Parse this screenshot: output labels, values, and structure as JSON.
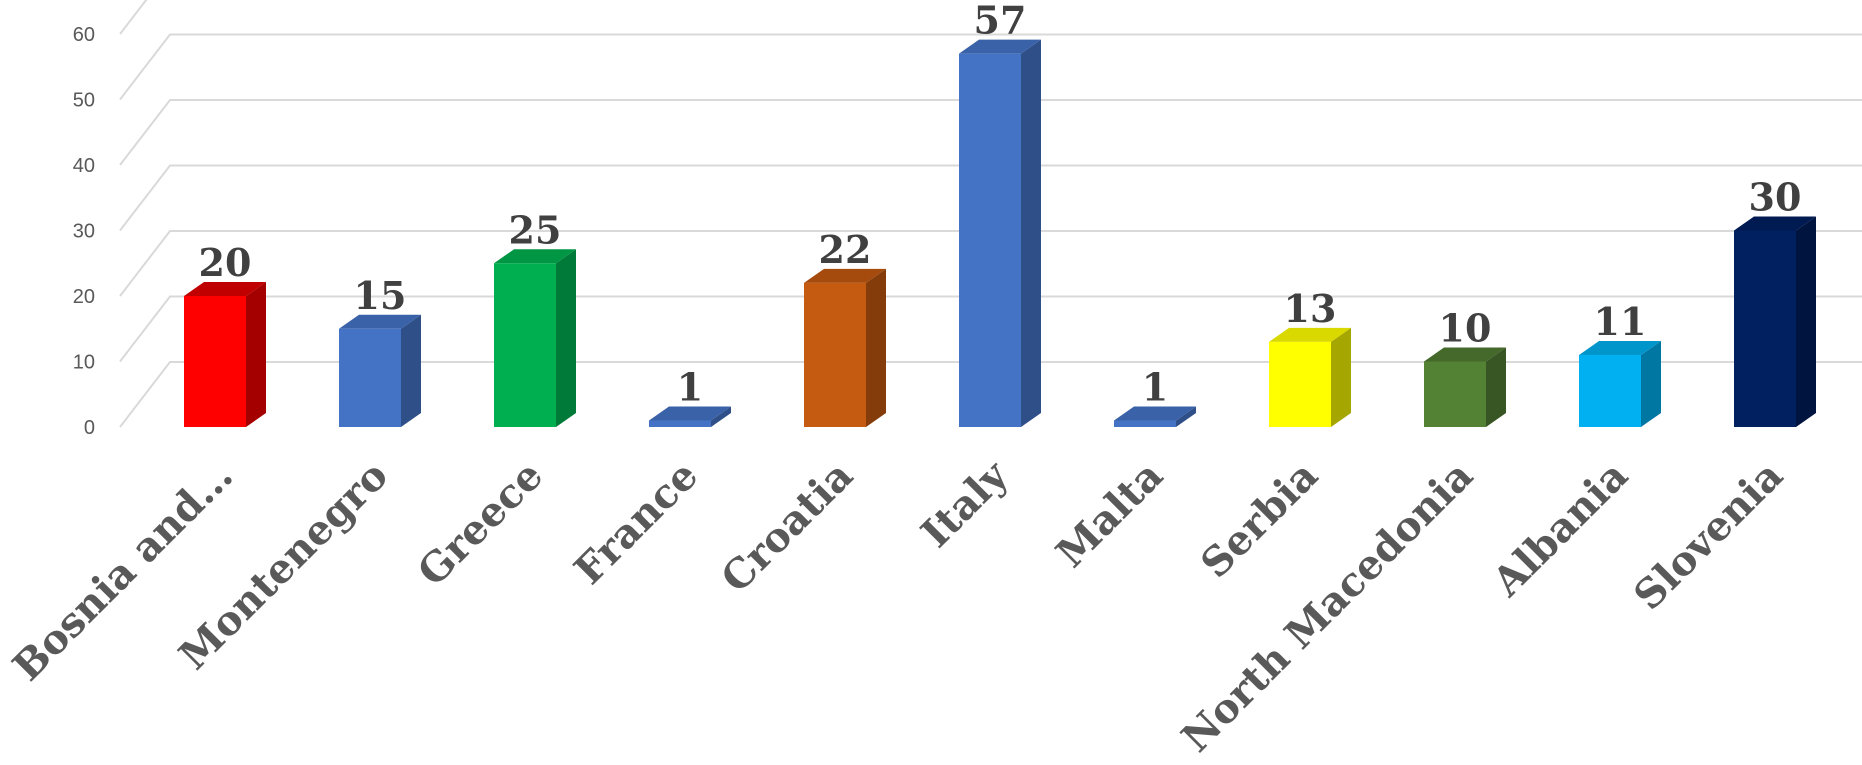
{
  "chart_data": {
    "type": "bar",
    "style": "3d-column",
    "categories": [
      "Bosnia and…",
      "Montenegro",
      "Greece",
      "France",
      "Croatia",
      "Italy",
      "Malta",
      "Serbia",
      "North Macedonia",
      "Albania",
      "Slovenia"
    ],
    "values": [
      20,
      15,
      25,
      1,
      22,
      57,
      1,
      13,
      10,
      11,
      30
    ],
    "data_labels": [
      "20",
      "15",
      "25",
      "1",
      "22",
      "57",
      "1",
      "13",
      "10",
      "11",
      "30"
    ],
    "colors": [
      "#ff0000",
      "#4472c4",
      "#00b050",
      "#4472c4",
      "#c55a11",
      "#4472c4",
      "#4472c4",
      "#ffff00",
      "#548235",
      "#00b0f0",
      "#002060"
    ],
    "side_colors": [
      "#a50000",
      "#2f4f88",
      "#007a38",
      "#2f4f88",
      "#843c0b",
      "#2f4f88",
      "#2f4f88",
      "#a6a600",
      "#375623",
      "#0077a3",
      "#001440"
    ],
    "top_colors": [
      "#c00000",
      "#3a62a8",
      "#009644",
      "#3a62a8",
      "#a64b0e",
      "#3a62a8",
      "#3a62a8",
      "#d9d900",
      "#44692b",
      "#0096cc",
      "#001a52"
    ],
    "yticks": [
      "0",
      "10",
      "20",
      "30",
      "40",
      "50",
      "60"
    ],
    "ylim": [
      0,
      60
    ],
    "grid": true,
    "gridline_color": "#d9d9d9",
    "title": "",
    "xlabel": "",
    "ylabel": ""
  }
}
